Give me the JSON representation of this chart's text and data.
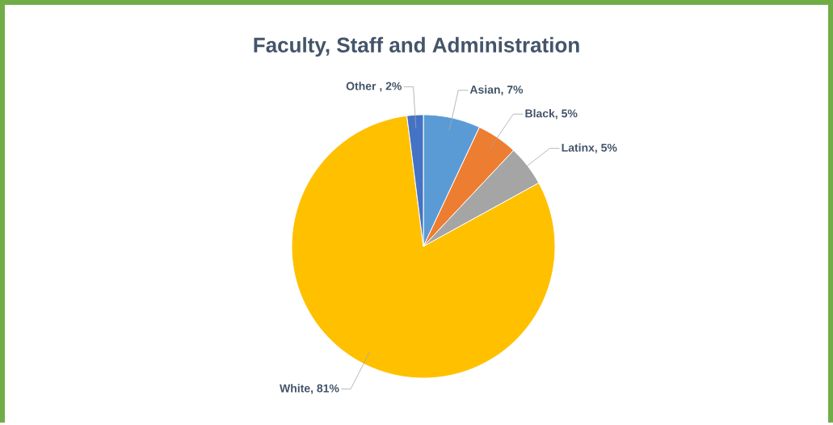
{
  "chart_data": {
    "type": "pie",
    "title": "Faculty, Staff and Administration",
    "categories": [
      "Asian",
      "Black",
      "Latinx",
      "White",
      "Other"
    ],
    "values": [
      7,
      5,
      5,
      81,
      2
    ],
    "value_labels": [
      ", 7%",
      ", 5%",
      ", 5%",
      ", 81%",
      " , 2%"
    ],
    "colors": [
      "#5b9bd5",
      "#ed7d31",
      "#a5a5a5",
      "#ffc000",
      "#4472c4"
    ],
    "legend": false
  }
}
